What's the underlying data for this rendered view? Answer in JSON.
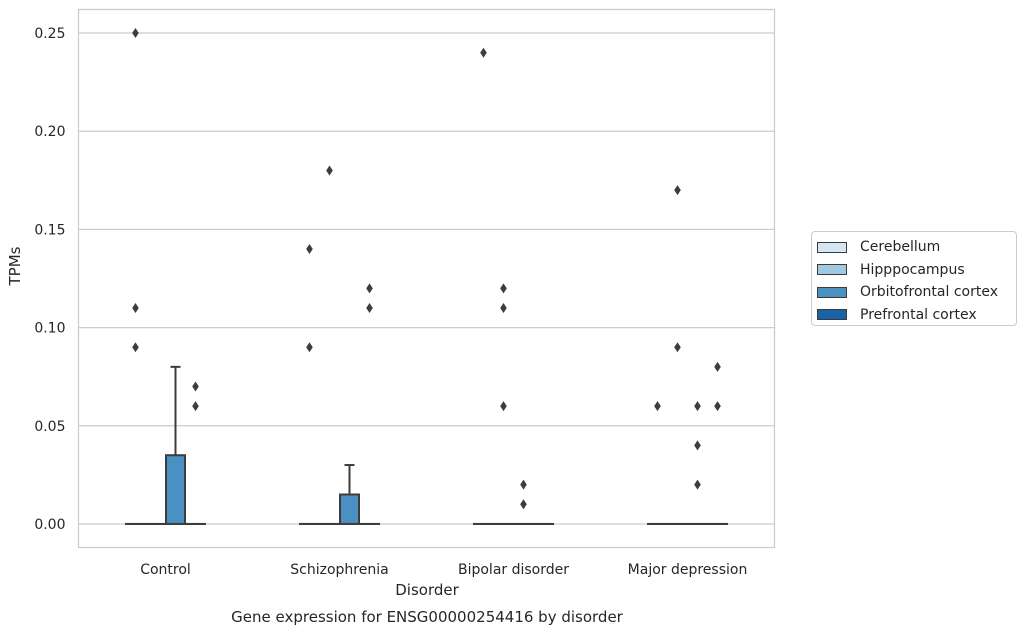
{
  "chart_data": {
    "type": "box",
    "xlabel": "Disorder",
    "ylabel": "TPMs",
    "caption": "Gene expression for ENSG00000254416 by disorder",
    "ylim": [
      -0.012,
      0.262
    ],
    "yticks": [
      "0.00",
      "0.05",
      "0.10",
      "0.15",
      "0.20",
      "0.25"
    ],
    "ytick_values": [
      0,
      0.05,
      0.1,
      0.15,
      0.2,
      0.25
    ],
    "grid": "horizontal",
    "legend_position": "right",
    "categories": [
      "Control",
      "Schizophrenia",
      "Bipolar disorder",
      "Major depression"
    ],
    "hues": [
      {
        "name": "Cerebellum",
        "color": "#d6e5f2"
      },
      {
        "name": "Hipppocampus",
        "color": "#9ec9e1"
      },
      {
        "name": "Orbitofrontal cortex",
        "color": "#4a90c3"
      },
      {
        "name": "Prefrontal cortex",
        "color": "#1c62a8"
      }
    ],
    "boxes": [
      {
        "category": "Control",
        "hue": "Cerebellum",
        "q1": 0,
        "median": 0,
        "q3": 0,
        "whisker_low": 0,
        "whisker_high": 0,
        "outliers": [
          0.25,
          0.11,
          0.09
        ]
      },
      {
        "category": "Control",
        "hue": "Hipppocampus",
        "q1": 0,
        "median": 0,
        "q3": 0,
        "whisker_low": 0,
        "whisker_high": 0,
        "outliers": []
      },
      {
        "category": "Control",
        "hue": "Orbitofrontal cortex",
        "q1": 0,
        "median": 0,
        "q3": 0.035,
        "whisker_low": 0,
        "whisker_high": 0.08,
        "outliers": []
      },
      {
        "category": "Control",
        "hue": "Prefrontal cortex",
        "q1": 0,
        "median": 0,
        "q3": 0,
        "whisker_low": 0,
        "whisker_high": 0,
        "outliers": [
          0.07,
          0.06
        ]
      },
      {
        "category": "Schizophrenia",
        "hue": "Cerebellum",
        "q1": 0,
        "median": 0,
        "q3": 0,
        "whisker_low": 0,
        "whisker_high": 0,
        "outliers": [
          0.14,
          0.09
        ]
      },
      {
        "category": "Schizophrenia",
        "hue": "Hipppocampus",
        "q1": 0,
        "median": 0,
        "q3": 0,
        "whisker_low": 0,
        "whisker_high": 0,
        "outliers": [
          0.18
        ]
      },
      {
        "category": "Schizophrenia",
        "hue": "Orbitofrontal cortex",
        "q1": 0,
        "median": 0,
        "q3": 0.015,
        "whisker_low": 0,
        "whisker_high": 0.03,
        "outliers": []
      },
      {
        "category": "Schizophrenia",
        "hue": "Prefrontal cortex",
        "q1": 0,
        "median": 0,
        "q3": 0,
        "whisker_low": 0,
        "whisker_high": 0,
        "outliers": [
          0.12,
          0.11
        ]
      },
      {
        "category": "Bipolar disorder",
        "hue": "Cerebellum",
        "q1": 0,
        "median": 0,
        "q3": 0,
        "whisker_low": 0,
        "whisker_high": 0,
        "outliers": [
          0.24
        ]
      },
      {
        "category": "Bipolar disorder",
        "hue": "Hipppocampus",
        "q1": 0,
        "median": 0,
        "q3": 0,
        "whisker_low": 0,
        "whisker_high": 0,
        "outliers": [
          0.12,
          0.11,
          0.06
        ]
      },
      {
        "category": "Bipolar disorder",
        "hue": "Orbitofrontal cortex",
        "q1": 0,
        "median": 0,
        "q3": 0,
        "whisker_low": 0,
        "whisker_high": 0,
        "outliers": [
          0.02,
          0.01
        ]
      },
      {
        "category": "Bipolar disorder",
        "hue": "Prefrontal cortex",
        "q1": 0,
        "median": 0,
        "q3": 0,
        "whisker_low": 0,
        "whisker_high": 0,
        "outliers": []
      },
      {
        "category": "Major depression",
        "hue": "Cerebellum",
        "q1": 0,
        "median": 0,
        "q3": 0,
        "whisker_low": 0,
        "whisker_high": 0,
        "outliers": [
          0.06
        ]
      },
      {
        "category": "Major depression",
        "hue": "Hipppocampus",
        "q1": 0,
        "median": 0,
        "q3": 0,
        "whisker_low": 0,
        "whisker_high": 0,
        "outliers": [
          0.17,
          0.09
        ]
      },
      {
        "category": "Major depression",
        "hue": "Orbitofrontal cortex",
        "q1": 0,
        "median": 0,
        "q3": 0,
        "whisker_low": 0,
        "whisker_high": 0,
        "outliers": [
          0.06,
          0.04,
          0.02
        ]
      },
      {
        "category": "Major depression",
        "hue": "Prefrontal cortex",
        "q1": 0,
        "median": 0,
        "q3": 0,
        "whisker_low": 0,
        "whisker_high": 0,
        "outliers": [
          0.08,
          0.06
        ]
      }
    ]
  }
}
